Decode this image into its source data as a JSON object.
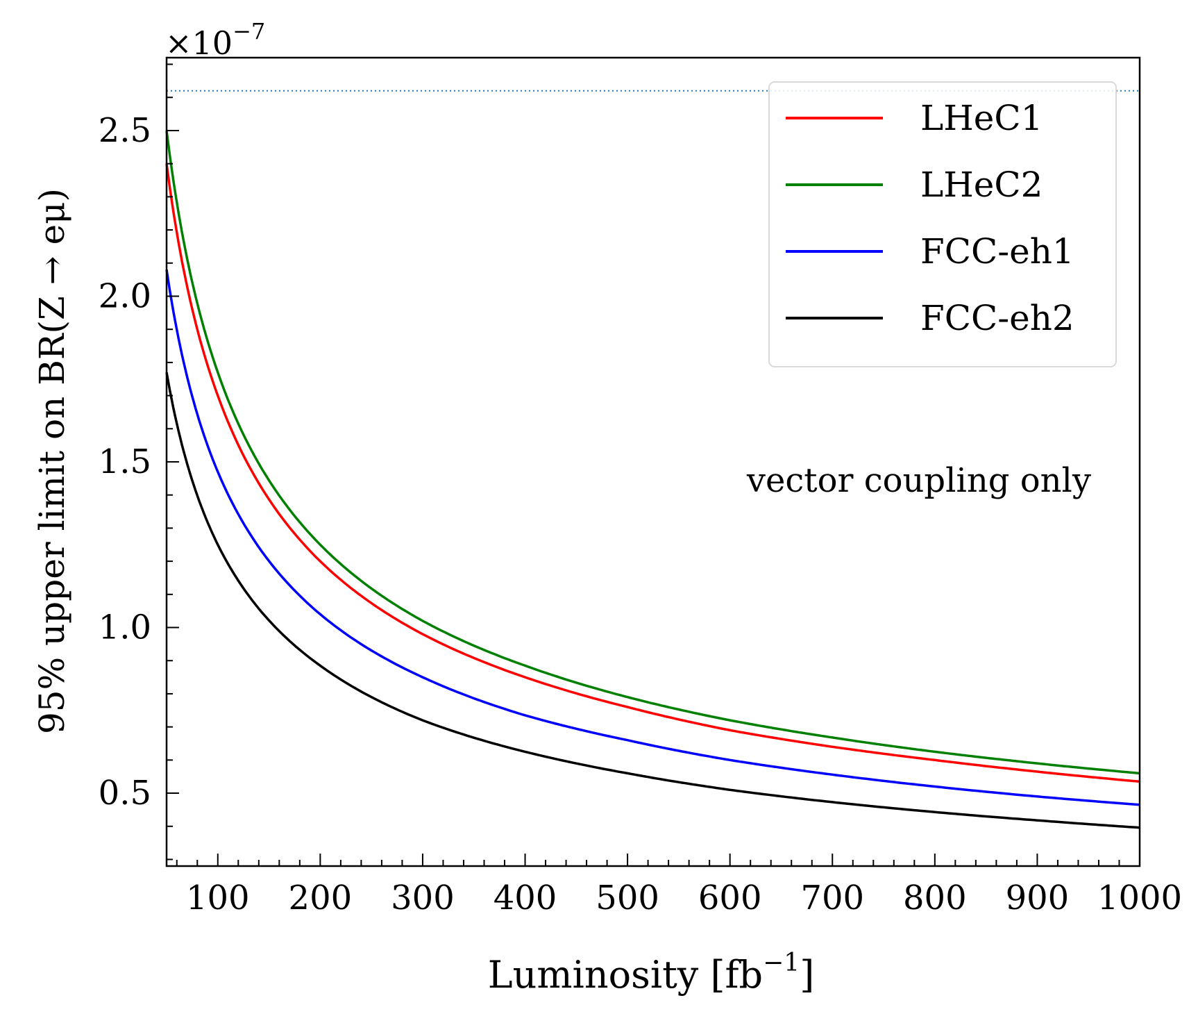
{
  "chart_data": {
    "type": "line",
    "title": "",
    "xlabel": "Luminosity [fb",
    "xlabel_sup": "−1",
    "xlabel_close": "]",
    "ylabel": "95% upper limit on BR(Z → eμ)",
    "y_multiplier": "×10",
    "y_multiplier_exp": "−7",
    "xlim": [
      50,
      1000
    ],
    "ylim": [
      0.28,
      2.72
    ],
    "x_ticks": [
      100,
      200,
      300,
      400,
      500,
      600,
      700,
      800,
      900,
      1000
    ],
    "y_ticks": [
      0.5,
      1.0,
      1.5,
      2.0,
      2.5
    ],
    "x_tick_labels": [
      "100",
      "200",
      "300",
      "400",
      "500",
      "600",
      "700",
      "800",
      "900",
      "1000"
    ],
    "y_tick_labels": [
      "0.5",
      "1.0",
      "1.5",
      "2.0",
      "2.5"
    ],
    "reference_line": {
      "y": 2.62,
      "style": "dotted",
      "color": "#1f77b4"
    },
    "annotation": "vector coupling only",
    "legend_position": "top-right",
    "series": [
      {
        "name": "LHeC1",
        "color": "#ff0000",
        "x": [
          50,
          100,
          200,
          300,
          400,
          500,
          600,
          700,
          800,
          900,
          1000
        ],
        "values": [
          2.4,
          1.7,
          1.2,
          0.98,
          0.85,
          0.76,
          0.69,
          0.64,
          0.6,
          0.565,
          0.535
        ]
      },
      {
        "name": "LHeC2",
        "color": "#008000",
        "x": [
          50,
          100,
          200,
          300,
          400,
          500,
          600,
          700,
          800,
          900,
          1000
        ],
        "values": [
          2.5,
          1.77,
          1.25,
          1.02,
          0.885,
          0.79,
          0.72,
          0.668,
          0.625,
          0.59,
          0.56
        ]
      },
      {
        "name": "FCC-eh1",
        "color": "#0000ff",
        "x": [
          50,
          100,
          200,
          300,
          400,
          500,
          600,
          700,
          800,
          900,
          1000
        ],
        "values": [
          2.08,
          1.47,
          1.04,
          0.85,
          0.735,
          0.66,
          0.6,
          0.556,
          0.52,
          0.49,
          0.465
        ]
      },
      {
        "name": "FCC-eh2",
        "color": "#000000",
        "x": [
          50,
          100,
          200,
          300,
          400,
          500,
          600,
          700,
          800,
          900,
          1000
        ],
        "values": [
          1.77,
          1.25,
          0.885,
          0.72,
          0.625,
          0.56,
          0.51,
          0.473,
          0.443,
          0.418,
          0.396
        ]
      }
    ]
  }
}
